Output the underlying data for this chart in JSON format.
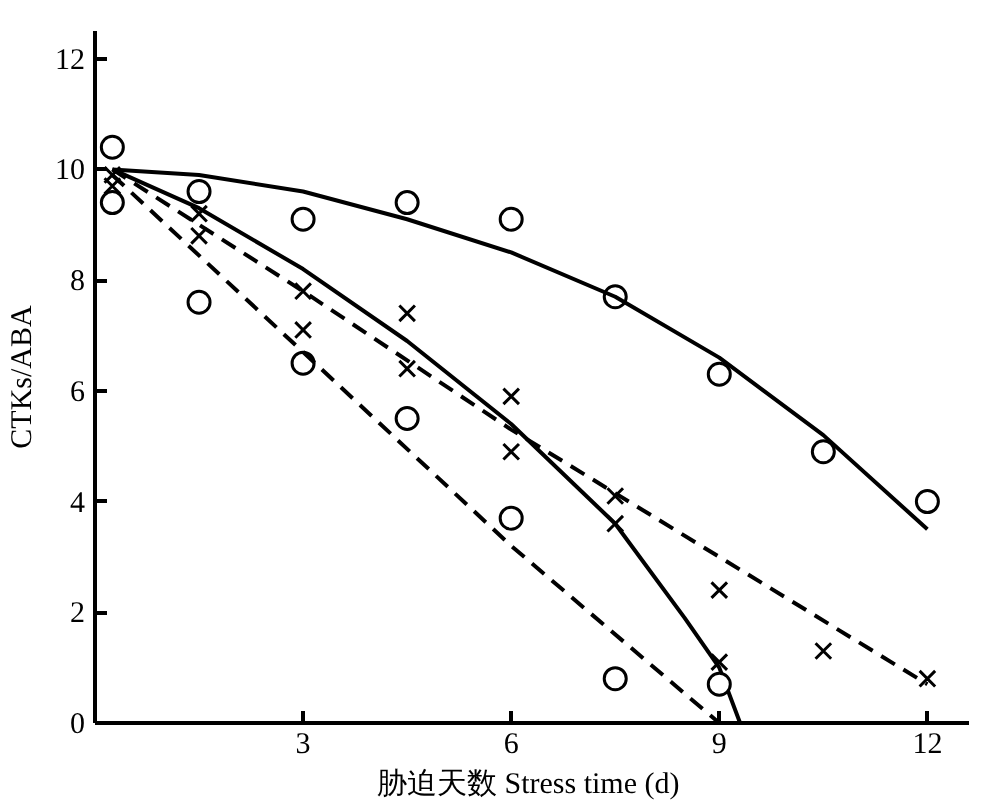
{
  "chart_data": {
    "type": "scatter",
    "xlabel": "胁迫天数  Stress time (d)",
    "ylabel": "CTKs/ABA",
    "xlim": [
      0,
      12.6
    ],
    "ylim": [
      0,
      12.5
    ],
    "xticks": [
      3,
      6,
      9,
      12
    ],
    "yticks": [
      0,
      2,
      4,
      6,
      8,
      10,
      12
    ],
    "grid": false,
    "series": [
      {
        "marker": "circle",
        "color": "#000000",
        "x": [
          0.25,
          1.5,
          3,
          4.5,
          6,
          7.5,
          9,
          10.5,
          12
        ],
        "values": [
          10.4,
          9.6,
          9.1,
          9.4,
          9.1,
          7.7,
          6.3,
          4.9,
          4.0
        ]
      },
      {
        "type": "line",
        "line_style": "solid",
        "color": "#000000",
        "x": [
          0.25,
          1.5,
          3,
          4.5,
          6,
          7.5,
          9,
          10.5,
          12
        ],
        "values": [
          10.0,
          9.9,
          9.6,
          9.1,
          8.5,
          7.7,
          6.6,
          5.2,
          3.5
        ]
      },
      {
        "marker": "cross",
        "color": "#000000",
        "x": [
          0.25,
          1.5,
          3,
          4.5,
          6,
          7.5,
          9
        ],
        "values": [
          9.9,
          9.2,
          7.8,
          7.4,
          5.9,
          3.6,
          1.1
        ]
      },
      {
        "type": "line",
        "line_style": "solid",
        "color": "#000000",
        "x": [
          0.25,
          1.5,
          3,
          4.5,
          6,
          7.5,
          8.5,
          9,
          9.3
        ],
        "values": [
          10.0,
          9.3,
          8.2,
          6.9,
          5.4,
          3.6,
          1.9,
          1.0,
          0
        ]
      },
      {
        "marker": "cross",
        "color": "#000000",
        "x": [
          0.25,
          1.5,
          3,
          4.5,
          6,
          7.5,
          9,
          10.5,
          12
        ],
        "values": [
          9.7,
          8.8,
          7.1,
          6.4,
          4.9,
          4.1,
          2.4,
          1.3,
          0.8
        ]
      },
      {
        "type": "line",
        "line_style": "dashed",
        "color": "#000000",
        "x": [
          0.25,
          3,
          6,
          9,
          12
        ],
        "values": [
          10.0,
          7.8,
          5.3,
          3.0,
          0.7
        ]
      },
      {
        "marker": "circle",
        "color": "#000000",
        "x": [
          0.25,
          1.5,
          3,
          4.5,
          6,
          7.5,
          9
        ],
        "values": [
          9.4,
          7.6,
          6.5,
          5.5,
          3.7,
          0.8,
          0.7
        ]
      },
      {
        "type": "line",
        "line_style": "dashed",
        "color": "#000000",
        "x": [
          0.25,
          3,
          6,
          9
        ],
        "values": [
          9.9,
          6.7,
          3.2,
          0
        ]
      }
    ]
  }
}
